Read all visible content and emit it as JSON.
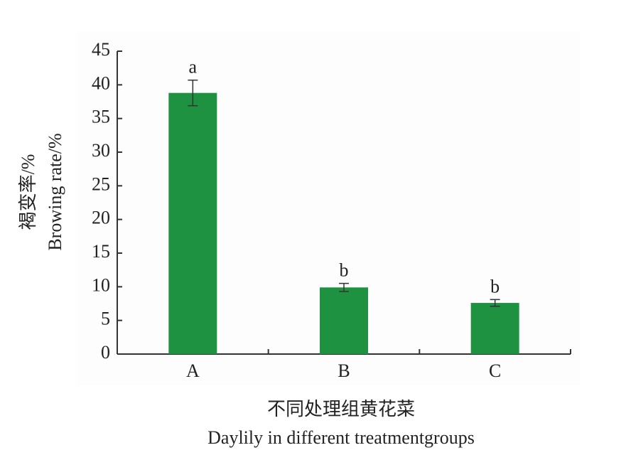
{
  "chart_data": {
    "type": "bar",
    "y_label_cn": "褐变率/%",
    "y_label": "Browing rate/%",
    "x_label_cn": "不同处理组黄花菜",
    "x_label": "Daylily in different treatmentgroups",
    "categories": [
      "A",
      "B",
      "C"
    ],
    "values": [
      38.8,
      9.9,
      7.6
    ],
    "errors": [
      1.9,
      0.6,
      0.5
    ],
    "annotations": [
      "a",
      "b",
      "b"
    ],
    "color": "#1e9240",
    "ylim": [
      0,
      45
    ],
    "yticks": [
      0,
      5,
      10,
      15,
      20,
      25,
      30,
      35,
      40,
      45
    ]
  }
}
